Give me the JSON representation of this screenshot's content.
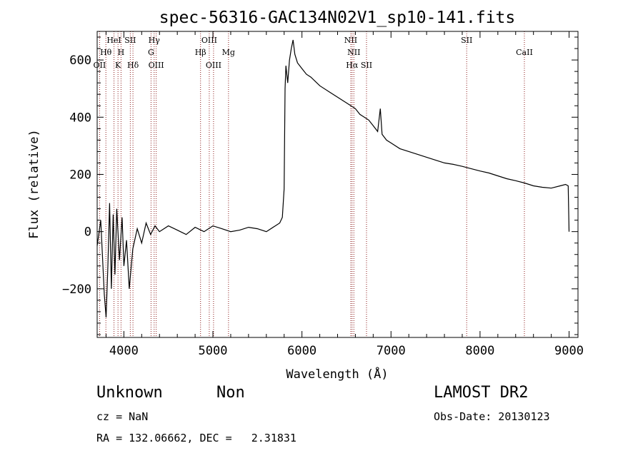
{
  "chart_data": {
    "type": "line",
    "title": "spec-56316-GAC134N02V1_sp10-141.fits",
    "xlabel": "Wavelength (Å)",
    "ylabel": "Flux (relative)",
    "xlim": [
      3700,
      9100
    ],
    "ylim": [
      -370,
      700
    ],
    "x_ticks": [
      4000,
      5000,
      6000,
      7000,
      8000,
      9000
    ],
    "y_ticks": [
      -200,
      0,
      200,
      400,
      600
    ],
    "grid": false,
    "series": [
      {
        "x": [
          3700,
          3740,
          3780,
          3800,
          3820,
          3840,
          3860,
          3880,
          3900,
          3920,
          3950,
          3980,
          4000,
          4030,
          4060,
          4100,
          4150,
          4200,
          4250,
          4300,
          4350,
          4400,
          4500,
          4600,
          4700,
          4800,
          4900,
          5000,
          5100,
          5200,
          5300,
          5400,
          5500,
          5600,
          5700,
          5750,
          5780,
          5800,
          5810,
          5820,
          5840,
          5860,
          5880,
          5900,
          5920,
          5950,
          6000,
          6050,
          6100,
          6200,
          6300,
          6400,
          6500,
          6550,
          6600,
          6650,
          6700,
          6750,
          6800,
          6850,
          6880,
          6900,
          6950,
          7000,
          7100,
          7200,
          7300,
          7400,
          7500,
          7600,
          7700,
          7800,
          7900,
          8000,
          8100,
          8200,
          8300,
          8400,
          8500,
          8600,
          8700,
          8800,
          8900,
          8960,
          8990,
          9000
        ],
        "y": [
          -50,
          40,
          -220,
          -300,
          -120,
          100,
          -200,
          60,
          -150,
          80,
          -100,
          50,
          -120,
          -30,
          -200,
          -60,
          10,
          -40,
          30,
          -10,
          20,
          0,
          20,
          5,
          -10,
          15,
          0,
          20,
          10,
          0,
          5,
          15,
          10,
          0,
          20,
          30,
          50,
          150,
          500,
          580,
          520,
          600,
          640,
          670,
          620,
          590,
          570,
          550,
          540,
          510,
          490,
          470,
          450,
          440,
          430,
          410,
          400,
          390,
          370,
          350,
          430,
          340,
          320,
          310,
          290,
          280,
          270,
          260,
          250,
          240,
          235,
          228,
          220,
          212,
          205,
          195,
          185,
          178,
          170,
          160,
          155,
          152,
          160,
          165,
          160,
          0
        ]
      }
    ],
    "lines": [
      {
        "label": "OII",
        "x": 3727,
        "row": 3
      },
      {
        "label": "Hθ",
        "x": 3798,
        "row": 2
      },
      {
        "label": "HeI",
        "x": 3889,
        "row": 1
      },
      {
        "label": "K",
        "x": 3934,
        "row": 3
      },
      {
        "label": "H",
        "x": 3968,
        "row": 2
      },
      {
        "label": "SII",
        "x": 4072,
        "row": 1
      },
      {
        "label": "Hδ",
        "x": 4102,
        "row": 3
      },
      {
        "label": "Hγ",
        "x": 4340,
        "row": 1
      },
      {
        "label": "G",
        "x": 4305,
        "row": 2
      },
      {
        "label": "OIII",
        "x": 4363,
        "row": 3
      },
      {
        "label": "Hβ",
        "x": 4861,
        "row": 2
      },
      {
        "label": "OIII",
        "x": 4959,
        "row": 1
      },
      {
        "label": "OIII",
        "x": 5007,
        "row": 3
      },
      {
        "label": "Mg",
        "x": 5175,
        "row": 2
      },
      {
        "label": "NII",
        "x": 6548,
        "row": 1
      },
      {
        "label": "NII",
        "x": 6583,
        "row": 2
      },
      {
        "label": "Hα",
        "x": 6563,
        "row": 3
      },
      {
        "label": "SII",
        "x": 6725,
        "row": 3
      },
      {
        "label": "SII",
        "x": 7850,
        "row": 1
      },
      {
        "label": "CaII",
        "x": 8498,
        "row": 2
      }
    ]
  },
  "info": {
    "object_class": "Unknown",
    "subclass": "Non",
    "survey": "LAMOST DR2",
    "cz": "cz = NaN",
    "obs_date": "Obs-Date: 20130123",
    "coords": "RA = 132.06662, DEC =   2.31831"
  }
}
